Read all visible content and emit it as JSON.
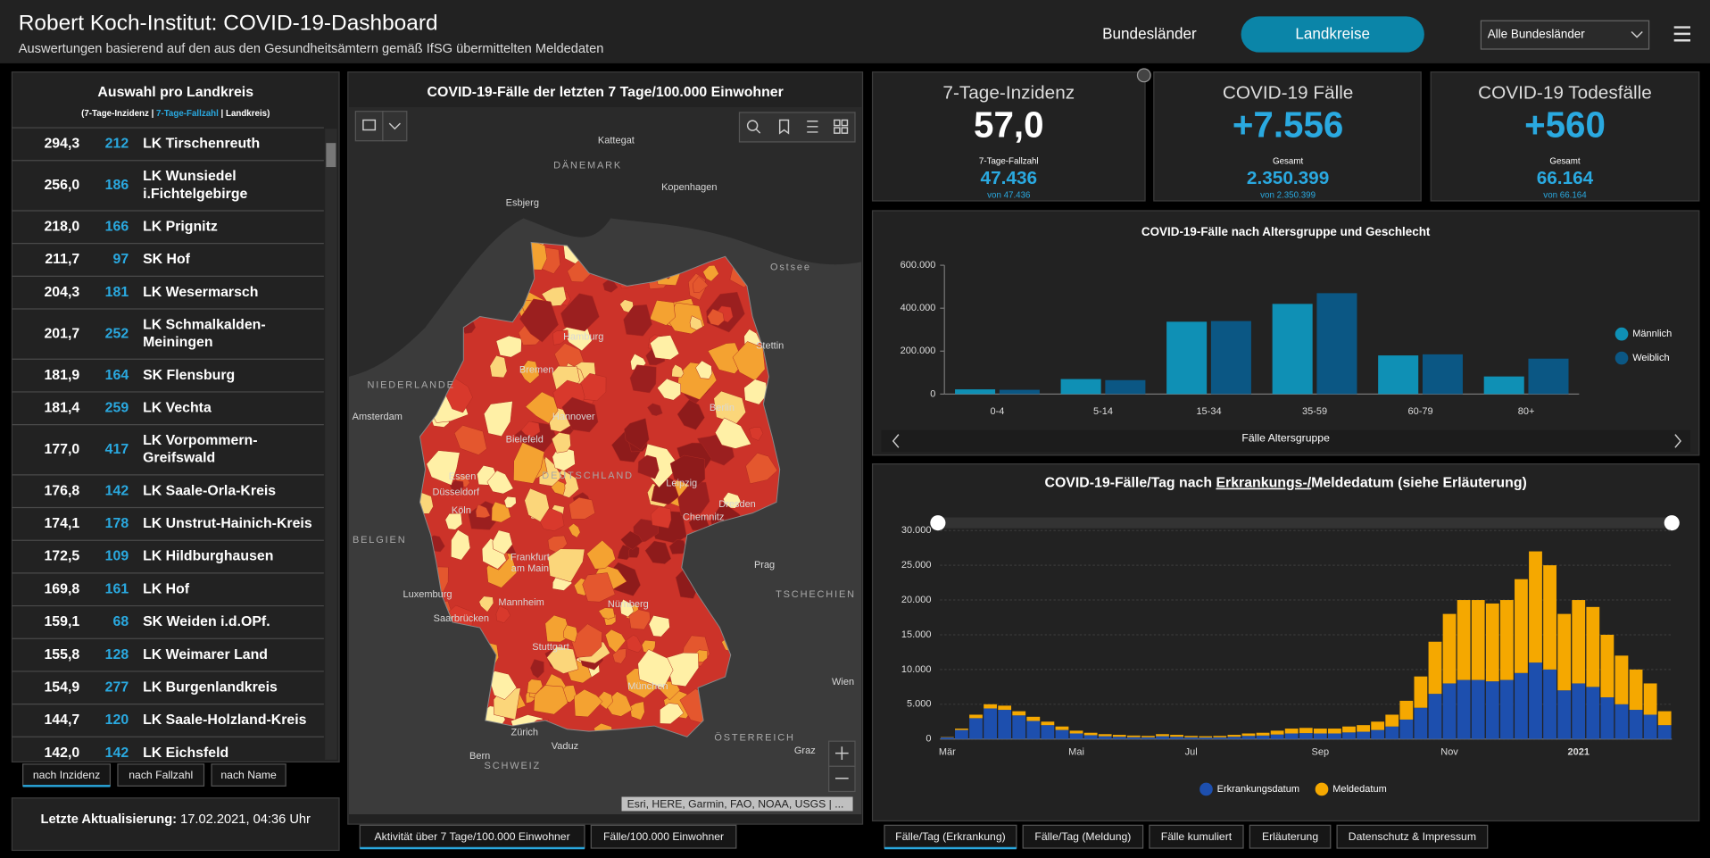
{
  "header": {
    "title": "Robert Koch-Institut: COVID-19-Dashboard",
    "subtitle": "Auswertungen basierend auf den aus den Gesundheitsämtern gemäß IfSG übermittelten Meldedaten",
    "nav": [
      "Bundesländer",
      "Landkreise"
    ],
    "dropdown": "Alle Bundesländer"
  },
  "list": {
    "title": "Auswahl pro Landkreis",
    "legend": [
      "(7-Tage-Inzidenz | ",
      "7-Tage-Fallzahl",
      " | Landkreis)"
    ],
    "rows": [
      {
        "incidence": "294,3",
        "cases": 212,
        "name": [
          "LK Tirschenreuth"
        ]
      },
      {
        "incidence": "256,0",
        "cases": 186,
        "name": [
          "LK Wunsiedel",
          "i.Fichtelgebirge"
        ]
      },
      {
        "incidence": "218,0",
        "cases": 166,
        "name": [
          "LK Prignitz"
        ]
      },
      {
        "incidence": "211,7",
        "cases": 97,
        "name": [
          "SK Hof"
        ]
      },
      {
        "incidence": "204,3",
        "cases": 181,
        "name": [
          "LK Wesermarsch"
        ]
      },
      {
        "incidence": "201,7",
        "cases": 252,
        "name": [
          "LK Schmalkalden-",
          "Meiningen"
        ]
      },
      {
        "incidence": "181,9",
        "cases": 164,
        "name": [
          "SK Flensburg"
        ]
      },
      {
        "incidence": "181,4",
        "cases": 259,
        "name": [
          "LK Vechta"
        ]
      },
      {
        "incidence": "177,0",
        "cases": 417,
        "name": [
          "LK Vorpommern-",
          "Greifswald"
        ]
      },
      {
        "incidence": "176,8",
        "cases": 142,
        "name": [
          "LK Saale-Orla-Kreis"
        ]
      },
      {
        "incidence": "174,1",
        "cases": 178,
        "name": [
          "LK Unstrut-Hainich-Kreis"
        ]
      },
      {
        "incidence": "172,5",
        "cases": 109,
        "name": [
          "LK Hildburghausen"
        ]
      },
      {
        "incidence": "169,8",
        "cases": 161,
        "name": [
          "LK Hof"
        ]
      },
      {
        "incidence": "159,1",
        "cases": 68,
        "name": [
          "SK Weiden i.d.OPf."
        ]
      },
      {
        "incidence": "155,8",
        "cases": 128,
        "name": [
          "LK Weimarer Land"
        ]
      },
      {
        "incidence": "154,9",
        "cases": 277,
        "name": [
          "LK Burgenlandkreis"
        ]
      },
      {
        "incidence": "144,7",
        "cases": 120,
        "name": [
          "LK Saale-Holzland-Kreis"
        ]
      },
      {
        "incidence": "142,0",
        "cases": 142,
        "name": [
          "LK Eichsfeld"
        ]
      }
    ],
    "tabs": [
      "nach Inzidenz",
      "nach Fallzahl",
      "nach Name"
    ]
  },
  "update": {
    "label": "Letzte Aktualisierung:",
    "value": " 17.02.2021, 04:36 Uhr"
  },
  "map": {
    "title": "COVID-19-Fälle der letzten 7 Tage/100.000 Einwohner",
    "labels": [
      "Kattegat",
      "DÄNEMARK",
      "Kopenhagen",
      "Esbjerg",
      "Ostsee",
      "Hamburg",
      "Stettin",
      "NIEDERLANDE",
      "Bremen",
      "Amsterdam",
      "Hannover",
      "Berlin",
      "Bielefeld",
      "DEUTSCHLAND",
      "Essen",
      "Düsseldorf",
      "Leipzig",
      "Köln",
      "Dresden",
      "Chemnitz",
      "BELGIEN",
      "Frankfurt",
      "am Main",
      "Prag",
      "TSCHECHIEN",
      "Luxemburg",
      "Mannheim",
      "Nürnberg",
      "Saarbrücken",
      "Stuttgart",
      "München",
      "Wien",
      "Zürich",
      "Vaduz",
      "ÖSTERREICH",
      "Bern",
      "SCHWEIZ",
      "Graz"
    ],
    "attribution": "Esri, HERE, Garmin, FAO, NOAA, USGS | ...",
    "tabs": [
      "Aktivität über 7 Tage/100.000 Einwohner",
      "Fälle/100.000 Einwohner"
    ]
  },
  "kpis": [
    {
      "title": "7-Tage-Inzidenz",
      "value": "57,0",
      "sub_label": "7-Tage-Fallzahl",
      "sub_value": "47.436",
      "sub_note": "von 47.436"
    },
    {
      "title": "COVID-19 Fälle",
      "value": "+7.556",
      "sub_label": "Gesamt",
      "sub_value": "2.350.399",
      "sub_note": "von 2.350.399"
    },
    {
      "title": "COVID-19 Todesfälle",
      "value": "+560",
      "sub_label": "Gesamt",
      "sub_value": "66.164",
      "sub_note": "von 66.164"
    }
  ],
  "chart_data": [
    {
      "type": "bar",
      "stacked": false,
      "title": "COVID-19-Fälle nach Altersgruppe und Geschlecht",
      "x_label": "Fälle Altersgruppe",
      "categories": [
        "0-4",
        "5-14",
        "15-34",
        "35-59",
        "60-79",
        "80+"
      ],
      "series": [
        {
          "name": "Männlich",
          "color": "#0f90b5",
          "values": [
            22000,
            70000,
            337000,
            420000,
            180000,
            82000
          ]
        },
        {
          "name": "Weiblich",
          "color": "#0b5784",
          "values": [
            20000,
            65000,
            340000,
            470000,
            185000,
            165000
          ]
        }
      ],
      "ylim": [
        0,
        600000
      ],
      "yticks": [
        0,
        {
          "value": 200000,
          "label": "200.000"
        },
        {
          "value": 400000,
          "label": "400.000"
        },
        {
          "value": 600000,
          "label": "600.000"
        }
      ],
      "grid": false,
      "legend": "right"
    },
    {
      "type": "bar",
      "stacked": true,
      "title": [
        "COVID-19-Fälle/Tag nach ",
        "Erkrankungs-/",
        "Meldedatum (siehe Erläuterung)"
      ],
      "categories": [
        "Mär",
        null,
        null,
        null,
        null,
        null,
        null,
        null,
        null,
        "Mai",
        null,
        null,
        null,
        null,
        null,
        null,
        null,
        "Jul",
        null,
        null,
        null,
        null,
        null,
        null,
        null,
        null,
        "Sep",
        null,
        null,
        null,
        null,
        null,
        null,
        null,
        null,
        "Nov",
        null,
        null,
        null,
        null,
        null,
        null,
        null,
        null,
        "2021",
        null,
        null,
        null,
        null,
        null,
        null
      ],
      "series": [
        {
          "name": "Erkrankungsdatum",
          "color": "#1d4fae",
          "values": [
            250,
            1300,
            3000,
            4400,
            4200,
            3400,
            2600,
            2000,
            1300,
            800,
            550,
            400,
            330,
            270,
            250,
            400,
            330,
            250,
            220,
            250,
            330,
            450,
            500,
            650,
            800,
            850,
            800,
            800,
            950,
            1050,
            1300,
            1800,
            2800,
            4500,
            6500,
            8000,
            8500,
            8500,
            8300,
            8500,
            9500,
            11000,
            10000,
            7000,
            8000,
            7500,
            6000,
            5000,
            4200,
            3500,
            2000
          ]
        },
        {
          "name": "Meldedatum",
          "color": "#f5a800",
          "values": [
            50,
            200,
            500,
            600,
            600,
            600,
            600,
            500,
            500,
            400,
            350,
            300,
            270,
            230,
            200,
            300,
            270,
            200,
            180,
            200,
            270,
            350,
            400,
            550,
            700,
            750,
            700,
            700,
            850,
            950,
            1200,
            1700,
            2700,
            4500,
            7500,
            10000,
            11500,
            11500,
            11200,
            11500,
            13500,
            16000,
            15000,
            11000,
            12000,
            11500,
            9000,
            7000,
            5800,
            4500,
            2000
          ]
        }
      ],
      "ylim": [
        0,
        30000
      ],
      "yticks": [
        0,
        {
          "value": 5000,
          "label": "5.000"
        },
        {
          "value": 10000,
          "label": "10.000"
        },
        {
          "value": 15000,
          "label": "15.000"
        },
        {
          "value": 20000,
          "label": "20.000"
        },
        {
          "value": 25000,
          "label": "25.000"
        },
        {
          "value": 30000,
          "label": "30.000"
        }
      ],
      "grid": true,
      "legend": "bottom"
    }
  ],
  "chart_tabs": [
    "Fälle/Tag (Erkrankung)",
    "Fälle/Tag (Meldung)",
    "Fälle kumuliert",
    "Erläuterung",
    "Datenschutz & Impressum"
  ]
}
